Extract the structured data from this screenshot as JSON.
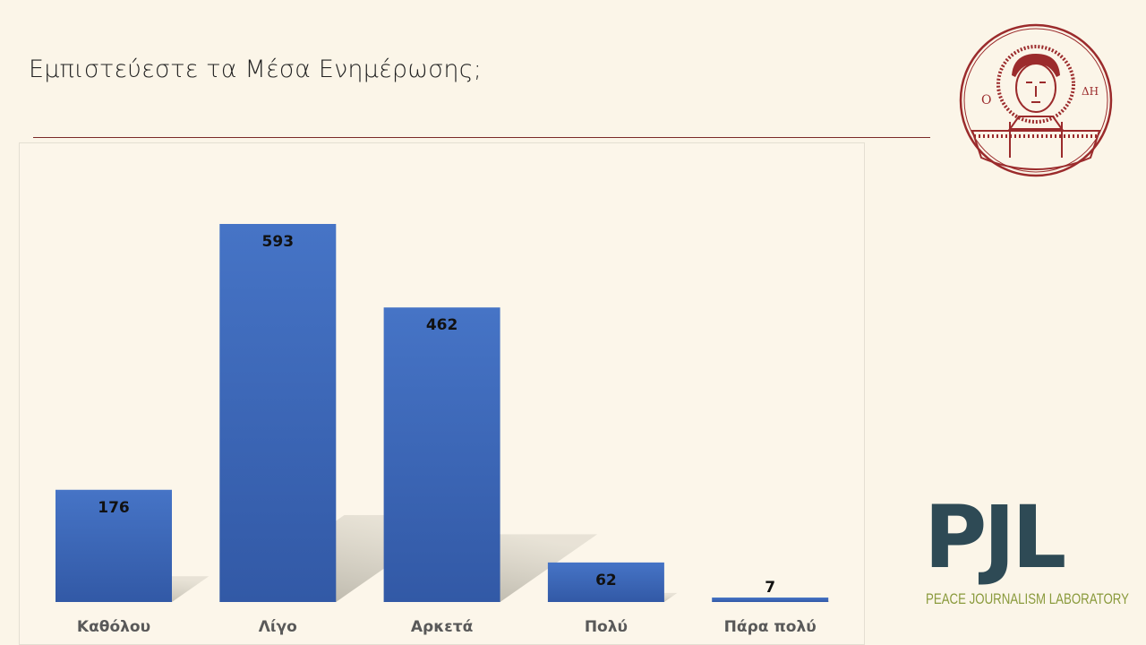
{
  "title": "Εμπιστεύεστε τα Μέσα Ενημέρωσης;",
  "logos": {
    "seal": "Aristotle University seal (Ο ΑΓΙΟΣ ΔΗΜΗΤΡΙΟΣ)",
    "pjl_mark": "PJL",
    "pjl_text": "PEACE JOURNALISM LABORATORY"
  },
  "chart_data": {
    "type": "bar",
    "title": "",
    "xlabel": "",
    "ylabel": "",
    "categories": [
      "Καθόλου",
      "Λίγο",
      "Αρκετά",
      "Πολύ",
      "Πάρα πολύ"
    ],
    "values": [
      176,
      593,
      462,
      62,
      7
    ],
    "value_labels": [
      "176",
      "593",
      "462",
      "62",
      "7"
    ],
    "ylim": [
      0,
      593
    ],
    "grid": false,
    "legend": "none",
    "bar_color": "#4472c4"
  }
}
